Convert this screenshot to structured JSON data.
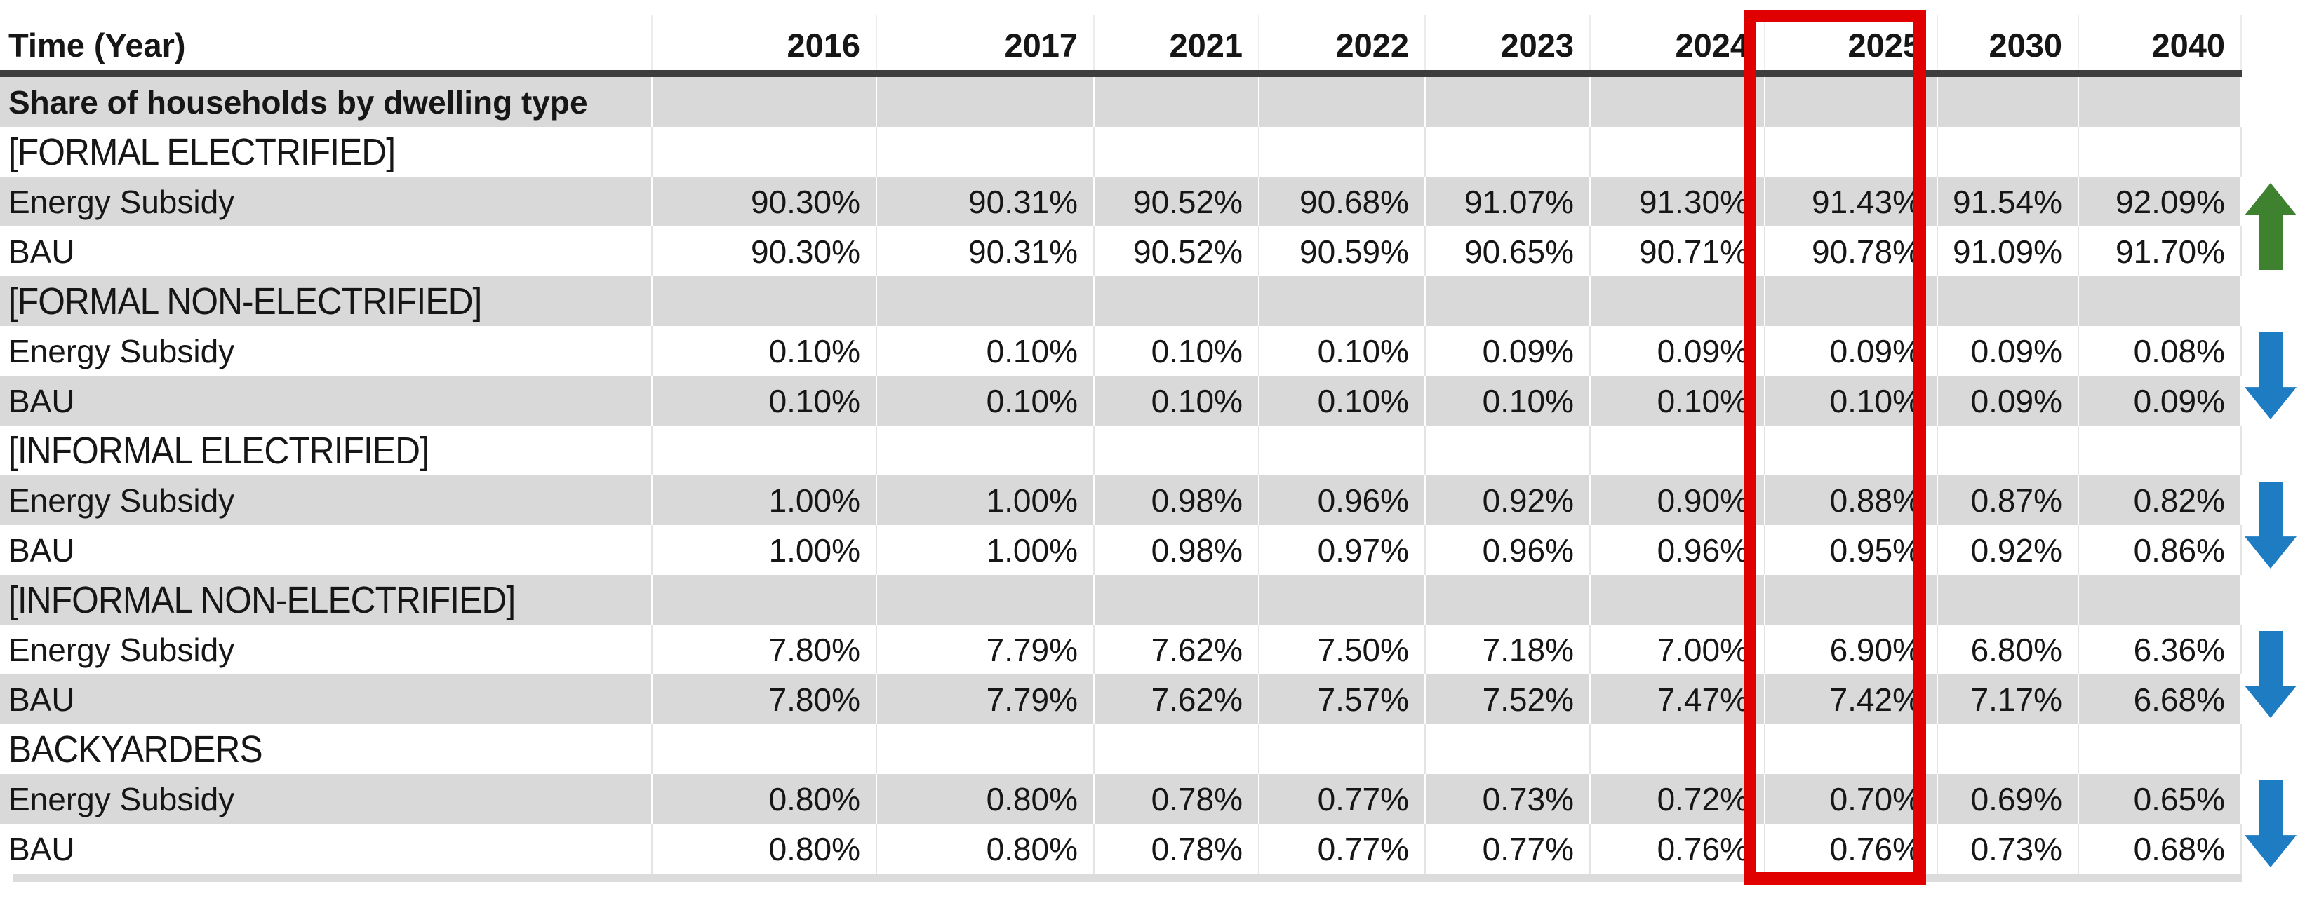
{
  "table": {
    "corner_label": "Time (Year)",
    "years": [
      "2016",
      "2017",
      "2021",
      "2022",
      "2023",
      "2024",
      "2025",
      "2030",
      "2040"
    ],
    "highlighted_year": "2025",
    "section_title": "Share of households by dwelling type",
    "groups": [
      {
        "label": "[FORMAL ELECTRIFIED]",
        "trend": "up",
        "rows": [
          {
            "label": "Energy Subsidy",
            "values": [
              "90.30%",
              "90.31%",
              "90.52%",
              "90.68%",
              "91.07%",
              "91.30%",
              "91.43%",
              "91.54%",
              "92.09%"
            ]
          },
          {
            "label": "BAU",
            "values": [
              "90.30%",
              "90.31%",
              "90.52%",
              "90.59%",
              "90.65%",
              "90.71%",
              "90.78%",
              "91.09%",
              "91.70%"
            ]
          }
        ]
      },
      {
        "label": "[FORMAL NON-ELECTRIFIED]",
        "trend": "down",
        "rows": [
          {
            "label": "Energy Subsidy",
            "values": [
              "0.10%",
              "0.10%",
              "0.10%",
              "0.10%",
              "0.09%",
              "0.09%",
              "0.09%",
              "0.09%",
              "0.08%"
            ]
          },
          {
            "label": "BAU",
            "values": [
              "0.10%",
              "0.10%",
              "0.10%",
              "0.10%",
              "0.10%",
              "0.10%",
              "0.10%",
              "0.09%",
              "0.09%"
            ]
          }
        ]
      },
      {
        "label": "[INFORMAL ELECTRIFIED]",
        "trend": "down",
        "rows": [
          {
            "label": "Energy Subsidy",
            "values": [
              "1.00%",
              "1.00%",
              "0.98%",
              "0.96%",
              "0.92%",
              "0.90%",
              "0.88%",
              "0.87%",
              "0.82%"
            ]
          },
          {
            "label": "BAU",
            "values": [
              "1.00%",
              "1.00%",
              "0.98%",
              "0.97%",
              "0.96%",
              "0.96%",
              "0.95%",
              "0.92%",
              "0.86%"
            ]
          }
        ]
      },
      {
        "label": "[INFORMAL NON-ELECTRIFIED]",
        "trend": "down",
        "rows": [
          {
            "label": "Energy Subsidy",
            "values": [
              "7.80%",
              "7.79%",
              "7.62%",
              "7.50%",
              "7.18%",
              "7.00%",
              "6.90%",
              "6.80%",
              "6.36%"
            ]
          },
          {
            "label": "BAU",
            "values": [
              "7.80%",
              "7.79%",
              "7.62%",
              "7.57%",
              "7.52%",
              "7.47%",
              "7.42%",
              "7.17%",
              "6.68%"
            ]
          }
        ]
      },
      {
        "label": "BACKYARDERS",
        "trend": "down",
        "rows": [
          {
            "label": "Energy Subsidy",
            "values": [
              "0.80%",
              "0.80%",
              "0.78%",
              "0.77%",
              "0.73%",
              "0.72%",
              "0.70%",
              "0.69%",
              "0.65%"
            ]
          },
          {
            "label": "BAU",
            "values": [
              "0.80%",
              "0.80%",
              "0.78%",
              "0.77%",
              "0.77%",
              "0.76%",
              "0.76%",
              "0.73%",
              "0.68%"
            ]
          }
        ]
      }
    ]
  },
  "colors": {
    "stripe_gray": "#D9D9D9",
    "highlight_red": "#E10000",
    "trend_up_green": "#3E8230",
    "trend_down_blue": "#1E7CC2",
    "header_rule": "#3E3E3E",
    "bottom_rule": "#DCDCDC"
  }
}
